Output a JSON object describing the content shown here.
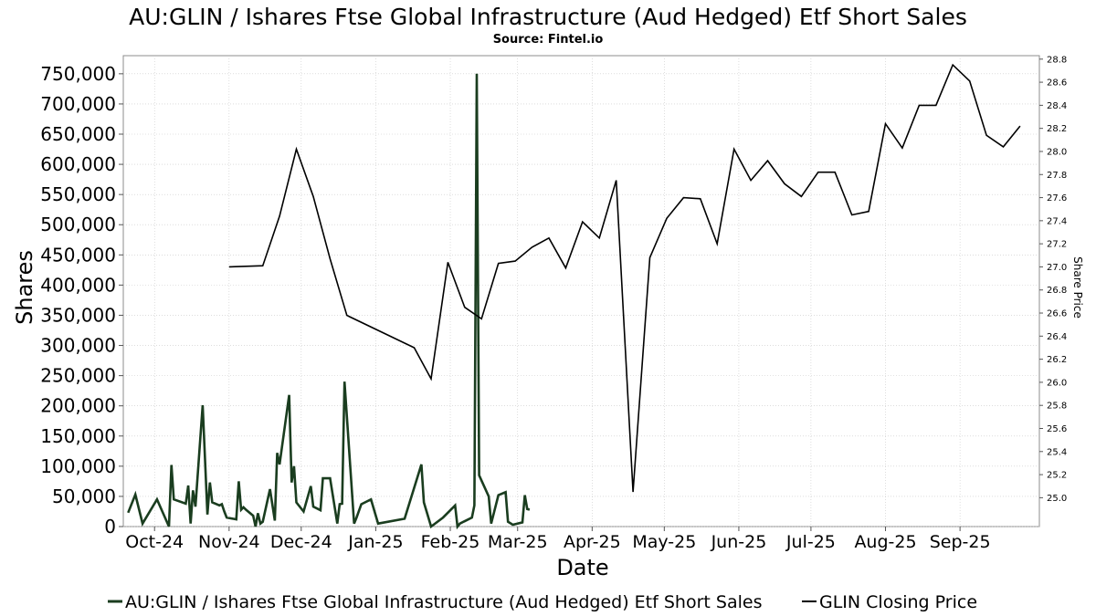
{
  "chart_data": {
    "type": "line",
    "title": "AU:GLIN / Ishares Ftse Global Infrastructure (Aud Hedged) Etf Short Sales",
    "subtitle": "Source: Fintel.io",
    "xlabel": "Date",
    "ylabel": "Shares",
    "y2label": "Share Price",
    "x_tick_labels": [
      "Oct-24",
      "Nov-24",
      "Dec-24",
      "Jan-25",
      "Feb-25",
      "Mar-25",
      "Apr-25",
      "May-25",
      "Jun-25",
      "Jul-25",
      "Aug-25",
      "Sep-25"
    ],
    "x_tick_dates": [
      "2024-10-01",
      "2024-11-01",
      "2024-12-01",
      "2025-01-01",
      "2025-02-01",
      "2025-03-01",
      "2025-04-01",
      "2025-05-01",
      "2025-06-01",
      "2025-07-01",
      "2025-08-01",
      "2025-09-01"
    ],
    "xlim": [
      "2024-09-18",
      "2025-10-04"
    ],
    "y_left": {
      "min": 0,
      "max": 780000,
      "ticks": [
        0,
        50000,
        100000,
        150000,
        200000,
        250000,
        300000,
        350000,
        400000,
        450000,
        500000,
        550000,
        600000,
        650000,
        700000,
        750000
      ],
      "tick_labels": [
        "0",
        "50,000",
        "100,000",
        "150,000",
        "200,000",
        "250,000",
        "300,000",
        "350,000",
        "400,000",
        "450,000",
        "500,000",
        "550,000",
        "600,000",
        "650,000",
        "700,000",
        "750,000"
      ]
    },
    "y_right": {
      "min": 24.75,
      "max": 28.83,
      "ticks": [
        25.0,
        25.2,
        25.4,
        25.6,
        25.8,
        26.0,
        26.2,
        26.4,
        26.6,
        26.8,
        27.0,
        27.2,
        27.4,
        27.6,
        27.8,
        28.0,
        28.2,
        28.4,
        28.6,
        28.8
      ],
      "tick_labels": [
        "25.0",
        "25.2",
        "25.4",
        "25.6",
        "25.8",
        "26.0",
        "26.2",
        "26.4",
        "26.6",
        "26.8",
        "27.0",
        "27.2",
        "27.4",
        "27.6",
        "27.8",
        "28.0",
        "28.2",
        "28.4",
        "28.6",
        "28.8"
      ]
    },
    "grid": true,
    "legend_position": "bottom",
    "series": [
      {
        "name": "AU:GLIN / Ishares Ftse Global Infrastructure (Aud Hedged) Etf Short Sales",
        "axis": "left",
        "color": "#1a3d1f",
        "points": [
          [
            "2024-09-20",
            23000
          ],
          [
            "2024-09-23",
            53000
          ],
          [
            "2024-09-26",
            5000
          ],
          [
            "2024-10-02",
            45000
          ],
          [
            "2024-10-07",
            0
          ],
          [
            "2024-10-08",
            102000
          ],
          [
            "2024-10-09",
            45000
          ],
          [
            "2024-10-14",
            38000
          ],
          [
            "2024-10-15",
            68000
          ],
          [
            "2024-10-16",
            5000
          ],
          [
            "2024-10-17",
            60000
          ],
          [
            "2024-10-18",
            33000
          ],
          [
            "2024-10-21",
            201000
          ],
          [
            "2024-10-23",
            20000
          ],
          [
            "2024-10-24",
            73000
          ],
          [
            "2024-10-25",
            40000
          ],
          [
            "2024-10-28",
            35000
          ],
          [
            "2024-10-29",
            37000
          ],
          [
            "2024-10-30",
            25000
          ],
          [
            "2024-10-31",
            15000
          ],
          [
            "2024-11-04",
            12000
          ],
          [
            "2024-11-05",
            75000
          ],
          [
            "2024-11-06",
            28000
          ],
          [
            "2024-11-07",
            32000
          ],
          [
            "2024-11-08",
            28000
          ],
          [
            "2024-11-11",
            18000
          ],
          [
            "2024-11-12",
            0
          ],
          [
            "2024-11-13",
            22000
          ],
          [
            "2024-11-14",
            5000
          ],
          [
            "2024-11-15",
            8000
          ],
          [
            "2024-11-18",
            62000
          ],
          [
            "2024-11-20",
            10000
          ],
          [
            "2024-11-21",
            122000
          ],
          [
            "2024-11-22",
            103000
          ],
          [
            "2024-11-26",
            218000
          ],
          [
            "2024-11-27",
            73000
          ],
          [
            "2024-11-28",
            100000
          ],
          [
            "2024-11-29",
            40000
          ],
          [
            "2024-12-02",
            25000
          ],
          [
            "2024-12-05",
            67000
          ],
          [
            "2024-12-06",
            33000
          ],
          [
            "2024-12-09",
            27000
          ],
          [
            "2024-12-10",
            80000
          ],
          [
            "2024-12-13",
            80000
          ],
          [
            "2024-12-16",
            5000
          ],
          [
            "2024-12-17",
            37000
          ],
          [
            "2024-12-18",
            38000
          ],
          [
            "2024-12-19",
            240000
          ],
          [
            "2024-12-23",
            5000
          ],
          [
            "2024-12-24",
            15000
          ],
          [
            "2024-12-26",
            37000
          ],
          [
            "2024-12-30",
            45000
          ],
          [
            "2025-01-02",
            5000
          ],
          [
            "2025-01-13",
            13000
          ],
          [
            "2025-01-20",
            103000
          ],
          [
            "2025-01-21",
            40000
          ],
          [
            "2025-01-24",
            0
          ],
          [
            "2025-01-29",
            15000
          ],
          [
            "2025-02-03",
            35000
          ],
          [
            "2025-02-04",
            0
          ],
          [
            "2025-02-05",
            5000
          ],
          [
            "2025-02-10",
            15000
          ],
          [
            "2025-02-11",
            35000
          ],
          [
            "2025-02-12",
            750000
          ],
          [
            "2025-02-13",
            85000
          ],
          [
            "2025-02-17",
            50000
          ],
          [
            "2025-02-18",
            5000
          ],
          [
            "2025-02-21",
            52000
          ],
          [
            "2025-02-24",
            57000
          ],
          [
            "2025-02-25",
            8000
          ],
          [
            "2025-02-27",
            3000
          ],
          [
            "2025-03-03",
            7000
          ],
          [
            "2025-03-04",
            52000
          ],
          [
            "2025-03-05",
            29000
          ],
          [
            "2025-03-06",
            28000
          ]
        ]
      },
      {
        "name": "GLIN Closing Price",
        "axis": "right",
        "color": "#000000",
        "points": [
          [
            "2024-11-01",
            27.0
          ],
          [
            "2024-11-15",
            27.01
          ],
          [
            "2024-11-22",
            27.44
          ],
          [
            "2024-11-29",
            28.02
          ],
          [
            "2024-12-06",
            27.61
          ],
          [
            "2024-12-13",
            27.07
          ],
          [
            "2024-12-20",
            26.58
          ],
          [
            "2025-01-17",
            26.3
          ],
          [
            "2025-01-24",
            26.03
          ],
          [
            "2025-01-31",
            27.04
          ],
          [
            "2025-02-07",
            26.65
          ],
          [
            "2025-02-14",
            26.55
          ],
          [
            "2025-02-21",
            27.03
          ],
          [
            "2025-02-28",
            27.05
          ],
          [
            "2025-03-07",
            27.17
          ],
          [
            "2025-03-14",
            27.25
          ],
          [
            "2025-03-21",
            26.99
          ],
          [
            "2025-03-28",
            27.39
          ],
          [
            "2025-04-04",
            27.25
          ],
          [
            "2025-04-11",
            27.75
          ],
          [
            "2025-04-18",
            25.05
          ],
          [
            "2025-04-25",
            27.08
          ],
          [
            "2025-05-02",
            27.42
          ],
          [
            "2025-05-09",
            27.6
          ],
          [
            "2025-05-16",
            27.59
          ],
          [
            "2025-05-23",
            27.2
          ],
          [
            "2025-05-30",
            28.02
          ],
          [
            "2025-06-06",
            27.75
          ],
          [
            "2025-06-13",
            27.92
          ],
          [
            "2025-06-20",
            27.72
          ],
          [
            "2025-06-27",
            27.61
          ],
          [
            "2025-07-04",
            27.82
          ],
          [
            "2025-07-11",
            27.82
          ],
          [
            "2025-07-18",
            27.45
          ],
          [
            "2025-07-25",
            27.48
          ],
          [
            "2025-08-01",
            28.24
          ],
          [
            "2025-08-08",
            28.03
          ],
          [
            "2025-08-15",
            28.4
          ],
          [
            "2025-08-22",
            28.4
          ],
          [
            "2025-08-29",
            28.75
          ],
          [
            "2025-09-05",
            28.61
          ],
          [
            "2025-09-12",
            28.14
          ],
          [
            "2025-09-19",
            28.04
          ],
          [
            "2025-09-26",
            28.22
          ]
        ]
      }
    ]
  }
}
